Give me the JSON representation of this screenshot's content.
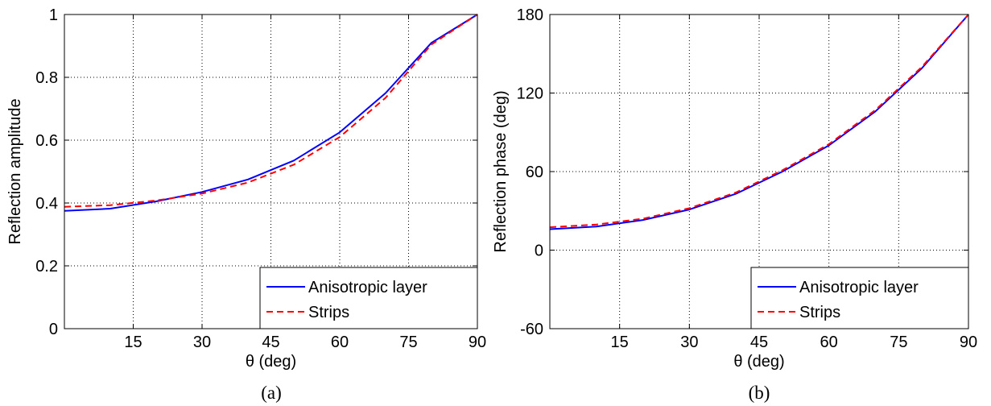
{
  "chart_data": [
    {
      "type": "line",
      "caption": "(a)",
      "xlabel": "θ (deg)",
      "ylabel": "Reflection amplitude",
      "xlim": [
        0,
        90
      ],
      "ylim": [
        0,
        1
      ],
      "xticks": [
        "15",
        "30",
        "45",
        "60",
        "75",
        "90"
      ],
      "yticks": [
        "0",
        "0.2",
        "0.4",
        "0.6",
        "0.8",
        "1"
      ],
      "grid": true,
      "legend_position": "bottom-right",
      "series": [
        {
          "name": "Anisotropic layer",
          "color": "#0000ff",
          "style": "solid",
          "x": [
            0,
            10,
            20,
            30,
            40,
            50,
            60,
            70,
            80,
            90
          ],
          "y": [
            0.375,
            0.382,
            0.405,
            0.435,
            0.475,
            0.535,
            0.625,
            0.75,
            0.91,
            1.0
          ]
        },
        {
          "name": "Strips",
          "color": "#ff0000",
          "style": "dashed",
          "x": [
            0,
            10,
            20,
            30,
            40,
            50,
            60,
            70,
            80,
            90
          ],
          "y": [
            0.388,
            0.393,
            0.408,
            0.43,
            0.465,
            0.522,
            0.61,
            0.735,
            0.905,
            1.0
          ]
        }
      ]
    },
    {
      "type": "line",
      "caption": "(b)",
      "xlabel": "θ (deg)",
      "ylabel": "Reflection phase (deg)",
      "xlim": [
        0,
        90
      ],
      "ylim": [
        -60,
        180
      ],
      "xticks": [
        "15",
        "30",
        "45",
        "60",
        "75",
        "90"
      ],
      "yticks": [
        "-60",
        "0",
        "60",
        "120",
        "180"
      ],
      "grid": true,
      "legend_position": "bottom-right",
      "series": [
        {
          "name": "Anisotropic layer",
          "color": "#0000ff",
          "style": "solid",
          "x": [
            0,
            10,
            20,
            30,
            40,
            50,
            60,
            70,
            80,
            90
          ],
          "y": [
            16,
            18,
            23,
            31,
            43,
            60,
            80,
            106,
            139,
            180
          ]
        },
        {
          "name": "Strips",
          "color": "#ff0000",
          "style": "dashed",
          "x": [
            0,
            10,
            20,
            30,
            40,
            50,
            60,
            70,
            80,
            90
          ],
          "y": [
            17.5,
            19.5,
            24,
            32,
            44,
            61,
            81,
            107,
            140,
            180
          ]
        }
      ]
    }
  ]
}
